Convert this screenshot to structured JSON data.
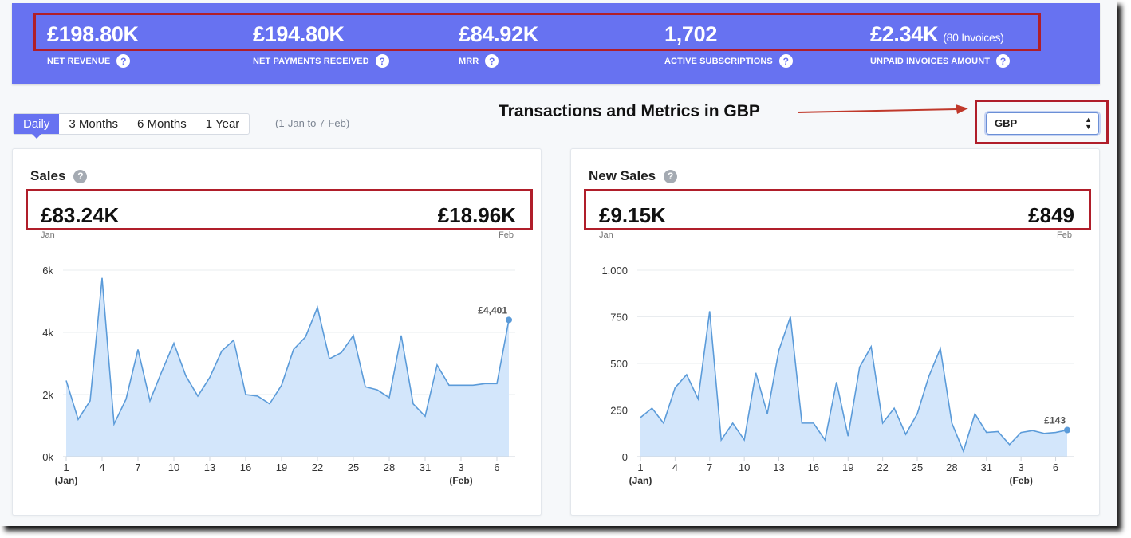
{
  "metrics": [
    {
      "value": "£198.80K",
      "extra": "",
      "label": "NET REVENUE"
    },
    {
      "value": "£194.80K",
      "extra": "",
      "label": "NET PAYMENTS RECEIVED"
    },
    {
      "value": "£84.92K",
      "extra": "",
      "label": "MRR"
    },
    {
      "value": "1,702",
      "extra": "",
      "label": "ACTIVE SUBSCRIPTIONS"
    },
    {
      "value": "£2.34K",
      "extra": "(80 Invoices)",
      "label": "UNPAID INVOICES AMOUNT"
    }
  ],
  "periods": [
    "Daily",
    "3 Months",
    "6 Months",
    "1 Year"
  ],
  "active_period": "Daily",
  "range_note": "(1-Jan to 7-Feb)",
  "annotation": "Transactions and Metrics in GBP",
  "currency": {
    "selected": "GBP"
  },
  "colors": {
    "banner": "#6772f1",
    "highlight_border": "#b01e2a",
    "line": "#5b9bd9",
    "area": "#d3e6fb",
    "arrow": "#c0392b"
  },
  "help_glyph": "?",
  "charts": {
    "sales": {
      "title": "Sales",
      "start_value": "£83.24K",
      "end_value": "£18.96K",
      "start_label": "Jan",
      "end_label": "Feb",
      "last_label": "£4,401"
    },
    "new_sales": {
      "title": "New Sales",
      "start_value": "£9.15K",
      "end_value": "£849",
      "start_label": "Jan",
      "end_label": "Feb",
      "last_label": "£143"
    }
  },
  "chart_data": [
    {
      "type": "area",
      "title": "Sales",
      "x": [
        1,
        2,
        3,
        4,
        5,
        6,
        7,
        8,
        9,
        10,
        11,
        12,
        13,
        14,
        15,
        16,
        17,
        18,
        19,
        20,
        21,
        22,
        23,
        24,
        25,
        26,
        27,
        28,
        29,
        30,
        31,
        32,
        33,
        34,
        35,
        36,
        37,
        38
      ],
      "y": [
        2450,
        1200,
        1800,
        5750,
        1050,
        1850,
        3450,
        1800,
        2750,
        3650,
        2600,
        1950,
        2550,
        3400,
        3750,
        2000,
        1950,
        1700,
        2300,
        3450,
        3850,
        4800,
        3150,
        3350,
        3900,
        2250,
        2150,
        1900,
        3900,
        1700,
        1300,
        2950,
        2300,
        2300,
        2300,
        2350,
        2350,
        4401
      ],
      "yticks": [
        "0k",
        "2k",
        "4k",
        "6k"
      ],
      "ylim": [
        0,
        6000
      ],
      "xticks": [
        "1",
        "4",
        "7",
        "10",
        "13",
        "16",
        "19",
        "22",
        "25",
        "28",
        "31",
        "3",
        "6"
      ],
      "xtick_positions": [
        1,
        4,
        7,
        10,
        13,
        16,
        19,
        22,
        25,
        28,
        31,
        34,
        37
      ],
      "xsub": [
        "(Jan)",
        "(Feb)"
      ],
      "last_label": "£4,401"
    },
    {
      "type": "area",
      "title": "New Sales",
      "x": [
        1,
        2,
        3,
        4,
        5,
        6,
        7,
        8,
        9,
        10,
        11,
        12,
        13,
        14,
        15,
        16,
        17,
        18,
        19,
        20,
        21,
        22,
        23,
        24,
        25,
        26,
        27,
        28,
        29,
        30,
        31,
        32,
        33,
        34,
        35,
        36,
        37,
        38
      ],
      "y": [
        210,
        260,
        180,
        370,
        440,
        310,
        780,
        90,
        180,
        90,
        450,
        230,
        570,
        750,
        180,
        180,
        90,
        400,
        110,
        480,
        590,
        180,
        260,
        120,
        230,
        430,
        580,
        180,
        30,
        230,
        130,
        135,
        65,
        130,
        140,
        125,
        130,
        143
      ],
      "yticks": [
        "0",
        "250",
        "500",
        "750",
        "1,000"
      ],
      "ylim": [
        0,
        1000
      ],
      "xticks": [
        "1",
        "4",
        "7",
        "10",
        "13",
        "16",
        "19",
        "22",
        "25",
        "28",
        "31",
        "3",
        "6"
      ],
      "xtick_positions": [
        1,
        4,
        7,
        10,
        13,
        16,
        19,
        22,
        25,
        28,
        31,
        34,
        37
      ],
      "xsub": [
        "(Jan)",
        "(Feb)"
      ],
      "last_label": "£143"
    }
  ]
}
